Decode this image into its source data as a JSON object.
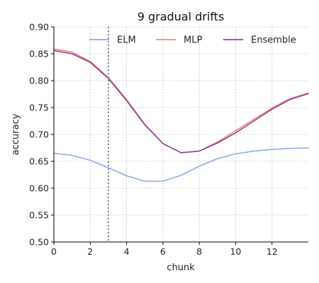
{
  "chart_data": {
    "type": "line",
    "title": "9 gradual drifts",
    "xlabel": "chunk",
    "ylabel": "accuracy",
    "xlim": [
      0,
      14
    ],
    "ylim": [
      0.5,
      0.9
    ],
    "xticks": [
      0,
      2,
      4,
      6,
      8,
      10,
      12
    ],
    "yticks": [
      0.5,
      0.55,
      0.6,
      0.65,
      0.7,
      0.75,
      0.8,
      0.85,
      0.9
    ],
    "grid": true,
    "legend_position": "top",
    "drift_marker_x": 3,
    "x": [
      0,
      1,
      2,
      3,
      4,
      5,
      6,
      7,
      8,
      9,
      10,
      11,
      12,
      13,
      14
    ],
    "series": [
      {
        "name": "ELM",
        "color": "#8caaee",
        "values": [
          0.665,
          0.661,
          0.652,
          0.638,
          0.623,
          0.613,
          0.613,
          0.624,
          0.641,
          0.655,
          0.664,
          0.669,
          0.672,
          0.674,
          0.675
        ]
      },
      {
        "name": "MLP",
        "color": "#f28a7a",
        "values": [
          0.859,
          0.853,
          0.836,
          0.806,
          0.765,
          0.719,
          0.683,
          0.666,
          0.669,
          0.686,
          0.707,
          0.728,
          0.749,
          0.767,
          0.777
        ]
      },
      {
        "name": "Ensemble",
        "color": "#8e3fa0",
        "values": [
          0.856,
          0.85,
          0.834,
          0.804,
          0.763,
          0.718,
          0.683,
          0.666,
          0.669,
          0.684,
          0.703,
          0.725,
          0.747,
          0.765,
          0.776
        ]
      }
    ]
  }
}
